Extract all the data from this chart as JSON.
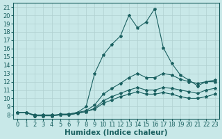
{
  "bg_color": "#c8e8e8",
  "grid_color": "#b0d0d0",
  "line_color": "#1a6060",
  "marker_color": "#1a6060",
  "xlabel": "Humidex (Indice chaleur)",
  "xlabel_fontsize": 7.5,
  "tick_fontsize": 6,
  "xlim": [
    -0.5,
    23.5
  ],
  "ylim": [
    7.5,
    21.5
  ],
  "xticks": [
    0,
    1,
    2,
    3,
    4,
    5,
    6,
    7,
    8,
    9,
    10,
    11,
    12,
    13,
    14,
    15,
    16,
    17,
    18,
    19,
    20,
    21,
    22,
    23
  ],
  "yticks": [
    8,
    9,
    10,
    11,
    12,
    13,
    14,
    15,
    16,
    17,
    18,
    19,
    20,
    21
  ],
  "line1_x": [
    0,
    1,
    2,
    3,
    4,
    5,
    6,
    7,
    8,
    9,
    10,
    11,
    12,
    13,
    14,
    15,
    16,
    17,
    18,
    19,
    20,
    21,
    22,
    23
  ],
  "line1_y": [
    8.3,
    8.3,
    7.9,
    7.9,
    7.9,
    8.1,
    8.1,
    8.3,
    9.0,
    13.0,
    15.2,
    16.5,
    17.5,
    20.0,
    18.5,
    19.2,
    20.8,
    16.1,
    14.2,
    12.8,
    12.2,
    11.5,
    12.0,
    12.0
  ],
  "line2_x": [
    0,
    1,
    2,
    3,
    4,
    5,
    6,
    7,
    8,
    9,
    10,
    11,
    12,
    13,
    14,
    15,
    16,
    17,
    18,
    19,
    20,
    21,
    22,
    23
  ],
  "line2_y": [
    8.3,
    8.3,
    8.0,
    8.0,
    8.0,
    8.0,
    8.1,
    8.3,
    8.5,
    9.2,
    10.5,
    11.2,
    11.8,
    12.5,
    13.0,
    12.5,
    12.5,
    13.0,
    12.8,
    12.3,
    12.0,
    11.8,
    12.0,
    12.2
  ],
  "line3_x": [
    0,
    1,
    2,
    3,
    4,
    5,
    6,
    7,
    8,
    9,
    10,
    11,
    12,
    13,
    14,
    15,
    16,
    17,
    18,
    19,
    20,
    21,
    22,
    23
  ],
  "line3_y": [
    8.3,
    8.3,
    7.9,
    7.9,
    7.9,
    8.0,
    8.0,
    8.2,
    8.4,
    8.8,
    9.7,
    10.2,
    10.6,
    11.0,
    11.3,
    11.0,
    11.0,
    11.3,
    11.2,
    11.0,
    10.8,
    10.6,
    11.0,
    11.2
  ],
  "line4_x": [
    0,
    1,
    2,
    3,
    4,
    5,
    6,
    7,
    8,
    9,
    10,
    11,
    12,
    13,
    14,
    15,
    16,
    17,
    18,
    19,
    20,
    21,
    22,
    23
  ],
  "line4_y": [
    8.3,
    8.3,
    7.9,
    7.9,
    7.9,
    8.0,
    8.0,
    8.2,
    8.4,
    8.7,
    9.4,
    9.8,
    10.2,
    10.5,
    10.8,
    10.5,
    10.5,
    10.7,
    10.5,
    10.2,
    10.0,
    10.0,
    10.2,
    10.5
  ]
}
